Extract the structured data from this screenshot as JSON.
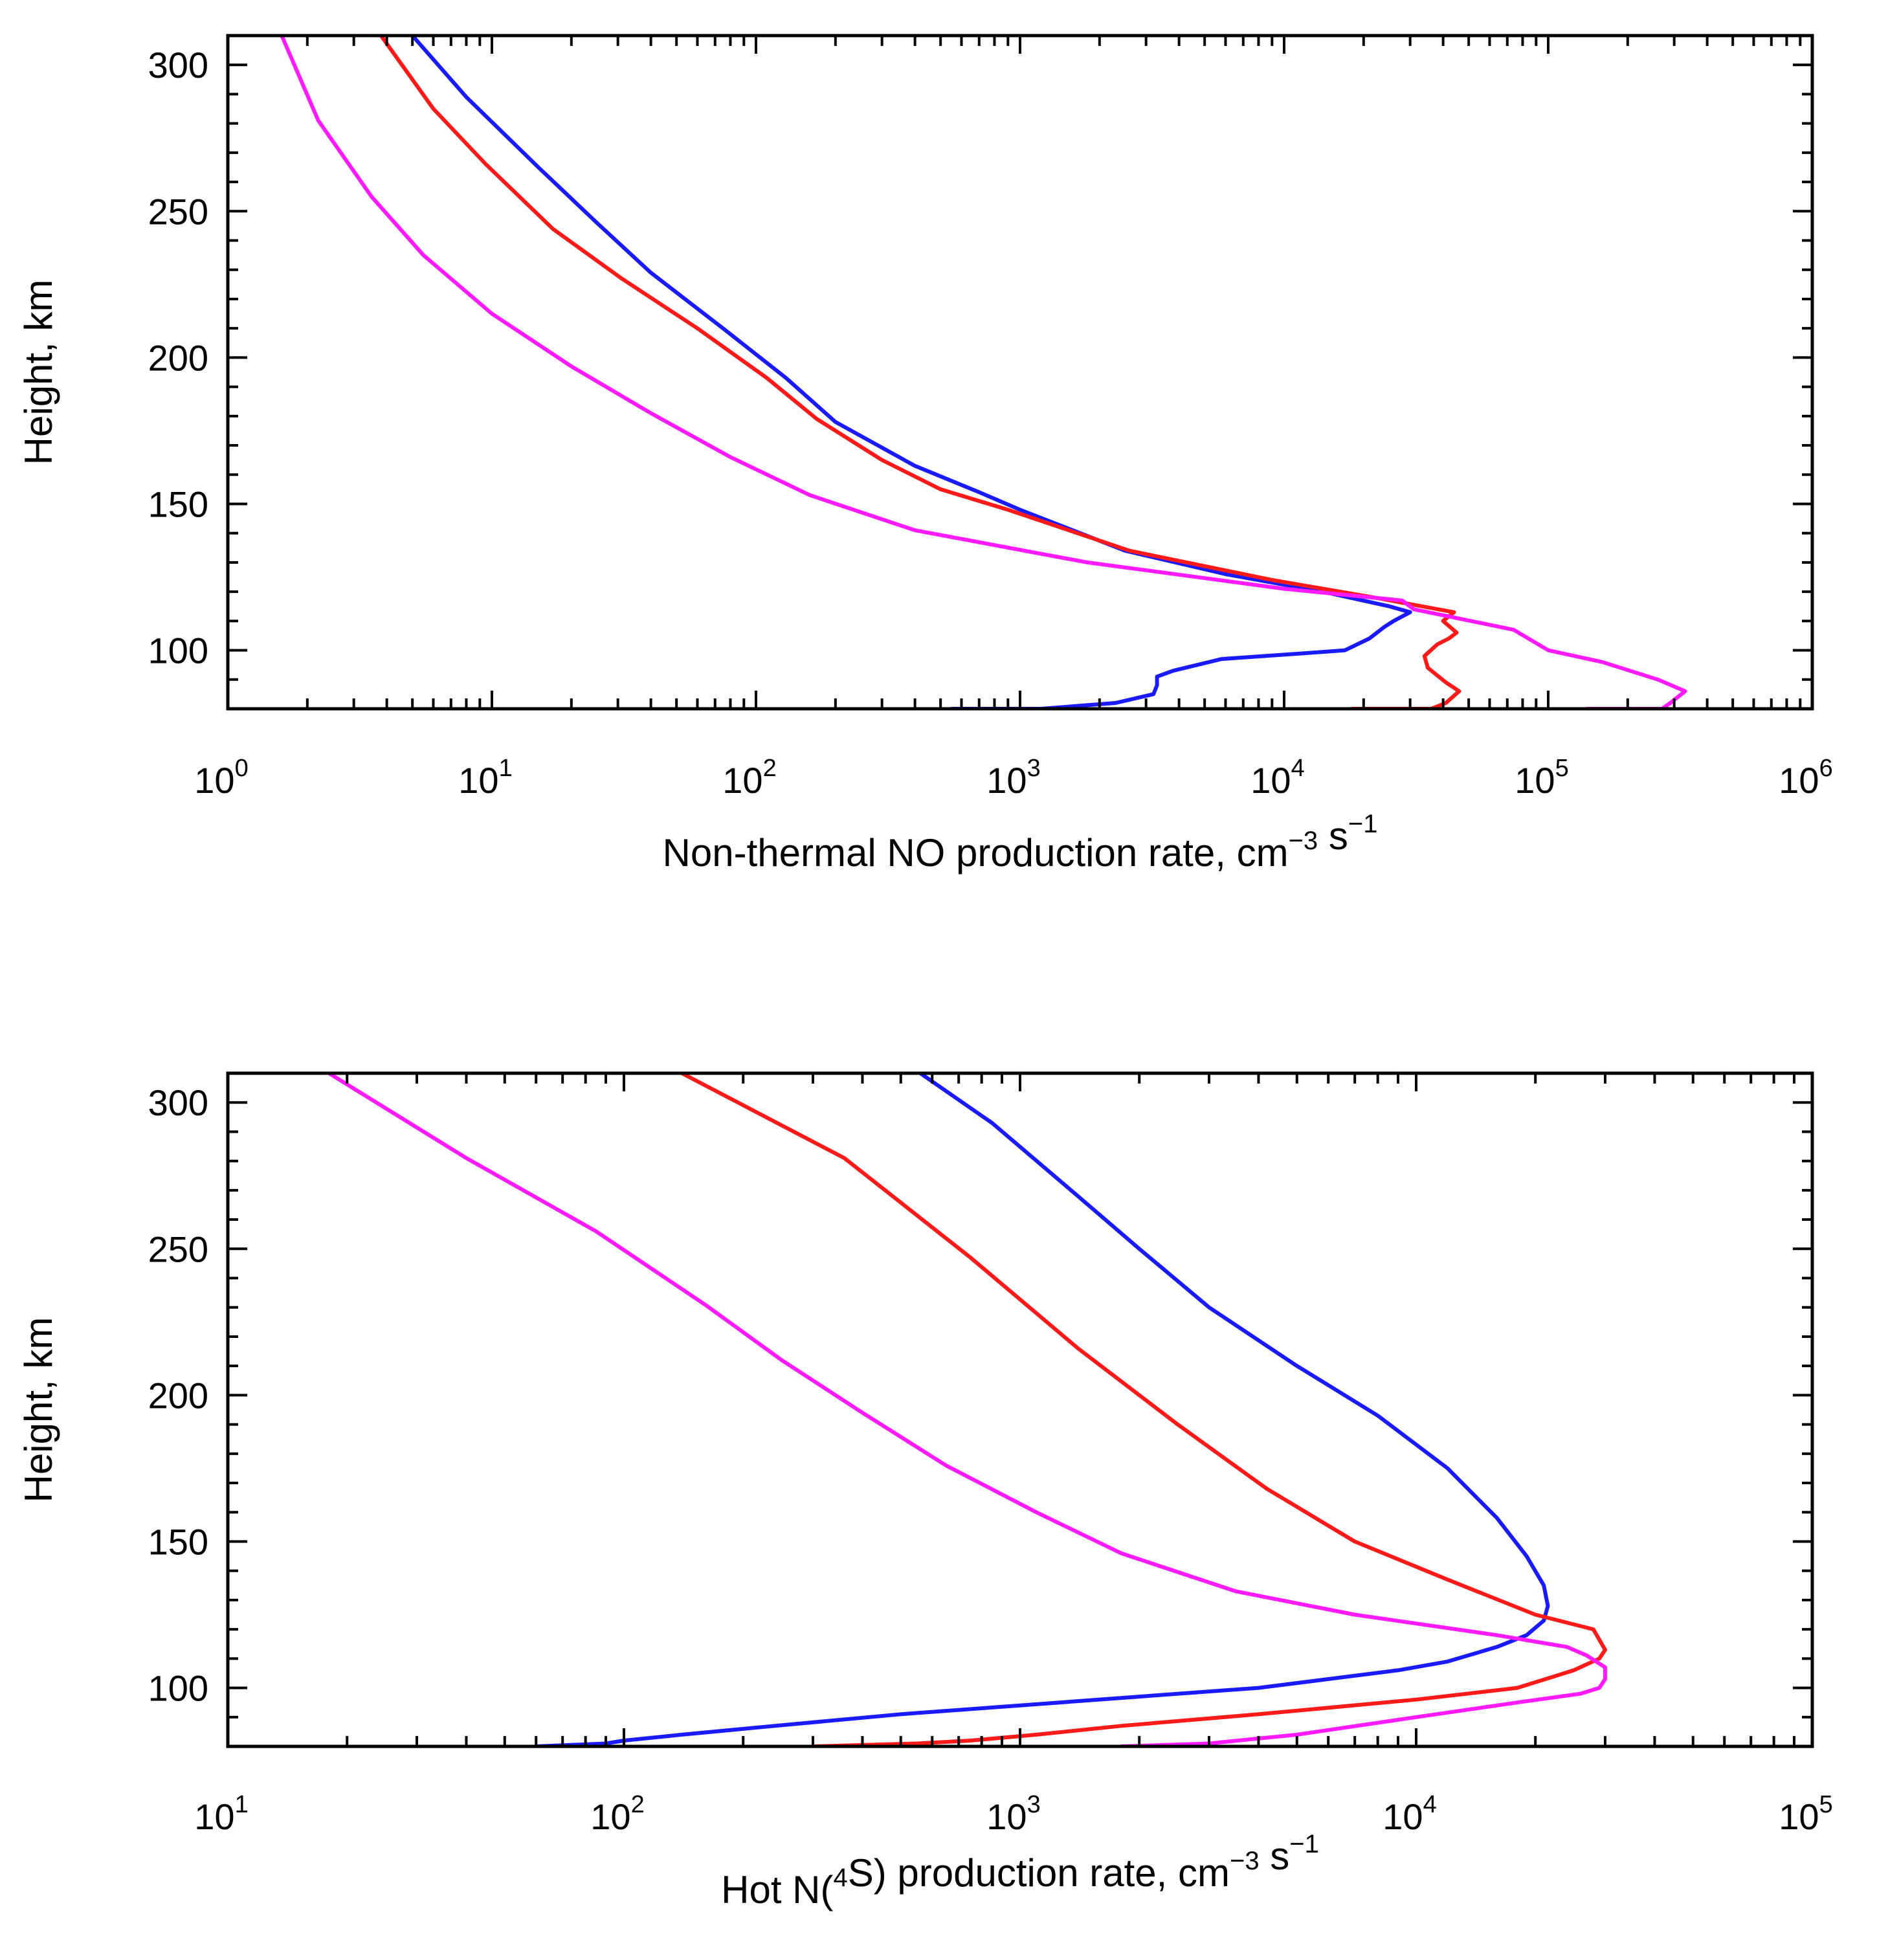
{
  "chart_data": [
    {
      "type": "line",
      "xscale": "log",
      "xlabel": {
        "main": "Non-thermal NO production rate, cm",
        "exp1": "−3",
        "mid": " s",
        "exp2": "−1"
      },
      "ylabel": "Height, km",
      "xlim": [
        1,
        1000000
      ],
      "ylim": [
        80,
        310
      ],
      "x_ticks": [
        {
          "base": "10",
          "exp": "0"
        },
        {
          "base": "10",
          "exp": "1"
        },
        {
          "base": "10",
          "exp": "2"
        },
        {
          "base": "10",
          "exp": "3"
        },
        {
          "base": "10",
          "exp": "4"
        },
        {
          "base": "10",
          "exp": "5"
        },
        {
          "base": "10",
          "exp": "6"
        }
      ],
      "y_ticks": [
        "100",
        "150",
        "200",
        "250",
        "300"
      ],
      "series": [
        {
          "name": "blue",
          "color": "#1a1aff",
          "points": [
            [
              550,
              80
            ],
            [
              1200,
              80
            ],
            [
              2300,
              82
            ],
            [
              3200,
              85
            ],
            [
              3300,
              88
            ],
            [
              3300,
              91
            ],
            [
              3800,
              93
            ],
            [
              5800,
              97
            ],
            [
              12000,
              99
            ],
            [
              17000,
              100
            ],
            [
              21000,
              104
            ],
            [
              24000,
              108
            ],
            [
              26000,
              110
            ],
            [
              30000,
              113
            ],
            [
              25000,
              115
            ],
            [
              14000,
              120
            ],
            [
              6000,
              126
            ],
            [
              2500,
              134
            ],
            [
              1000,
              148
            ],
            [
              700,
              154
            ],
            [
              400,
              163
            ],
            [
              200,
              178
            ],
            [
              130,
              193
            ],
            [
              75,
              210
            ],
            [
              40,
              229
            ],
            [
              25,
              246
            ],
            [
              15,
              265
            ],
            [
              8,
              289
            ],
            [
              5,
              310
            ]
          ]
        },
        {
          "name": "red",
          "color": "#ff1a1a",
          "points": [
            [
              18000,
              80
            ],
            [
              36000,
              80
            ],
            [
              41000,
              82
            ],
            [
              46000,
              86
            ],
            [
              41000,
              89
            ],
            [
              35000,
              94
            ],
            [
              34000,
              98
            ],
            [
              38000,
              102
            ],
            [
              42000,
              104
            ],
            [
              45000,
              106
            ],
            [
              40000,
              110
            ],
            [
              44000,
              113
            ],
            [
              22000,
              118
            ],
            [
              9000,
              124
            ],
            [
              2600,
              134
            ],
            [
              900,
              148
            ],
            [
              500,
              155
            ],
            [
              300,
              165
            ],
            [
              170,
              179
            ],
            [
              110,
              193
            ],
            [
              60,
              210
            ],
            [
              31,
              227
            ],
            [
              17,
              244
            ],
            [
              9.5,
              266
            ],
            [
              6,
              285
            ],
            [
              3.8,
              310
            ]
          ]
        },
        {
          "name": "magenta",
          "color": "#ff1aff",
          "points": [
            [
              140000,
              80
            ],
            [
              270000,
              80
            ],
            [
              290000,
              82
            ],
            [
              330000,
              86
            ],
            [
              260000,
              90
            ],
            [
              160000,
              96
            ],
            [
              100000,
              100
            ],
            [
              74000,
              107
            ],
            [
              45000,
              111
            ],
            [
              31000,
              114
            ],
            [
              28000,
              117
            ],
            [
              10000,
              121
            ],
            [
              1800,
              130
            ],
            [
              400,
              141
            ],
            [
              160,
              153
            ],
            [
              80,
              166
            ],
            [
              40,
              181
            ],
            [
              20,
              197
            ],
            [
              10,
              215
            ],
            [
              5.5,
              235
            ],
            [
              3.5,
              255
            ],
            [
              2.2,
              281
            ],
            [
              1.6,
              310
            ]
          ]
        }
      ]
    },
    {
      "type": "line",
      "xscale": "log",
      "xlabel": {
        "main": "Hot N(",
        "sup": "4",
        "main2": "S) production rate, cm",
        "exp1": "−3",
        "mid": " s",
        "exp2": "−1"
      },
      "ylabel": "Height, km",
      "xlim": [
        10,
        100000
      ],
      "ylim": [
        80,
        310
      ],
      "x_ticks": [
        {
          "base": "10",
          "exp": "1"
        },
        {
          "base": "10",
          "exp": "2"
        },
        {
          "base": "10",
          "exp": "3"
        },
        {
          "base": "10",
          "exp": "4"
        },
        {
          "base": "10",
          "exp": "5"
        }
      ],
      "y_ticks": [
        "100",
        "150",
        "200",
        "250",
        "300"
      ],
      "series": [
        {
          "name": "blue",
          "color": "#1a1aff",
          "points": [
            [
              60,
              80
            ],
            [
              90,
              81
            ],
            [
              100,
              82
            ],
            [
              140,
              84
            ],
            [
              240,
              87
            ],
            [
              500,
              91
            ],
            [
              1000,
              94
            ],
            [
              2000,
              97
            ],
            [
              4000,
              100
            ],
            [
              6000,
              103
            ],
            [
              9000,
              106
            ],
            [
              12000,
              109
            ],
            [
              16000,
              114
            ],
            [
              19000,
              118
            ],
            [
              21000,
              123
            ],
            [
              21500,
              128
            ],
            [
              21000,
              135
            ],
            [
              19000,
              145
            ],
            [
              16000,
              158
            ],
            [
              12000,
              175
            ],
            [
              8000,
              193
            ],
            [
              5000,
              210
            ],
            [
              3000,
              230
            ],
            [
              2000,
              250
            ],
            [
              1400,
              268
            ],
            [
              850,
              293
            ],
            [
              560,
              310
            ]
          ]
        },
        {
          "name": "red",
          "color": "#ff1a1a",
          "points": [
            [
              300,
              80
            ],
            [
              550,
              81
            ],
            [
              750,
              82
            ],
            [
              1100,
              84
            ],
            [
              1800,
              87
            ],
            [
              4000,
              91
            ],
            [
              10000,
              96
            ],
            [
              18000,
              100
            ],
            [
              25000,
              106
            ],
            [
              29000,
              110
            ],
            [
              30000,
              113
            ],
            [
              28000,
              120
            ],
            [
              20000,
              125
            ],
            [
              12000,
              137
            ],
            [
              7000,
              150
            ],
            [
              4200,
              168
            ],
            [
              2500,
              190
            ],
            [
              1400,
              216
            ],
            [
              750,
              247
            ],
            [
              360,
              281
            ],
            [
              140,
              310
            ]
          ]
        },
        {
          "name": "magenta",
          "color": "#ff1aff",
          "points": [
            [
              1800,
              80
            ],
            [
              3000,
              81
            ],
            [
              5000,
              84
            ],
            [
              10000,
              90
            ],
            [
              18000,
              95
            ],
            [
              26000,
              98
            ],
            [
              29000,
              100
            ],
            [
              30000,
              103
            ],
            [
              30000,
              107
            ],
            [
              27000,
              111
            ],
            [
              24000,
              114
            ],
            [
              16000,
              118
            ],
            [
              7000,
              125
            ],
            [
              3500,
              133
            ],
            [
              1800,
              146
            ],
            [
              1100,
              160
            ],
            [
              650,
              176
            ],
            [
              400,
              194
            ],
            [
              250,
              212
            ],
            [
              160,
              231
            ],
            [
              85,
              256
            ],
            [
              40,
              281
            ],
            [
              18,
              310
            ]
          ]
        }
      ]
    }
  ]
}
